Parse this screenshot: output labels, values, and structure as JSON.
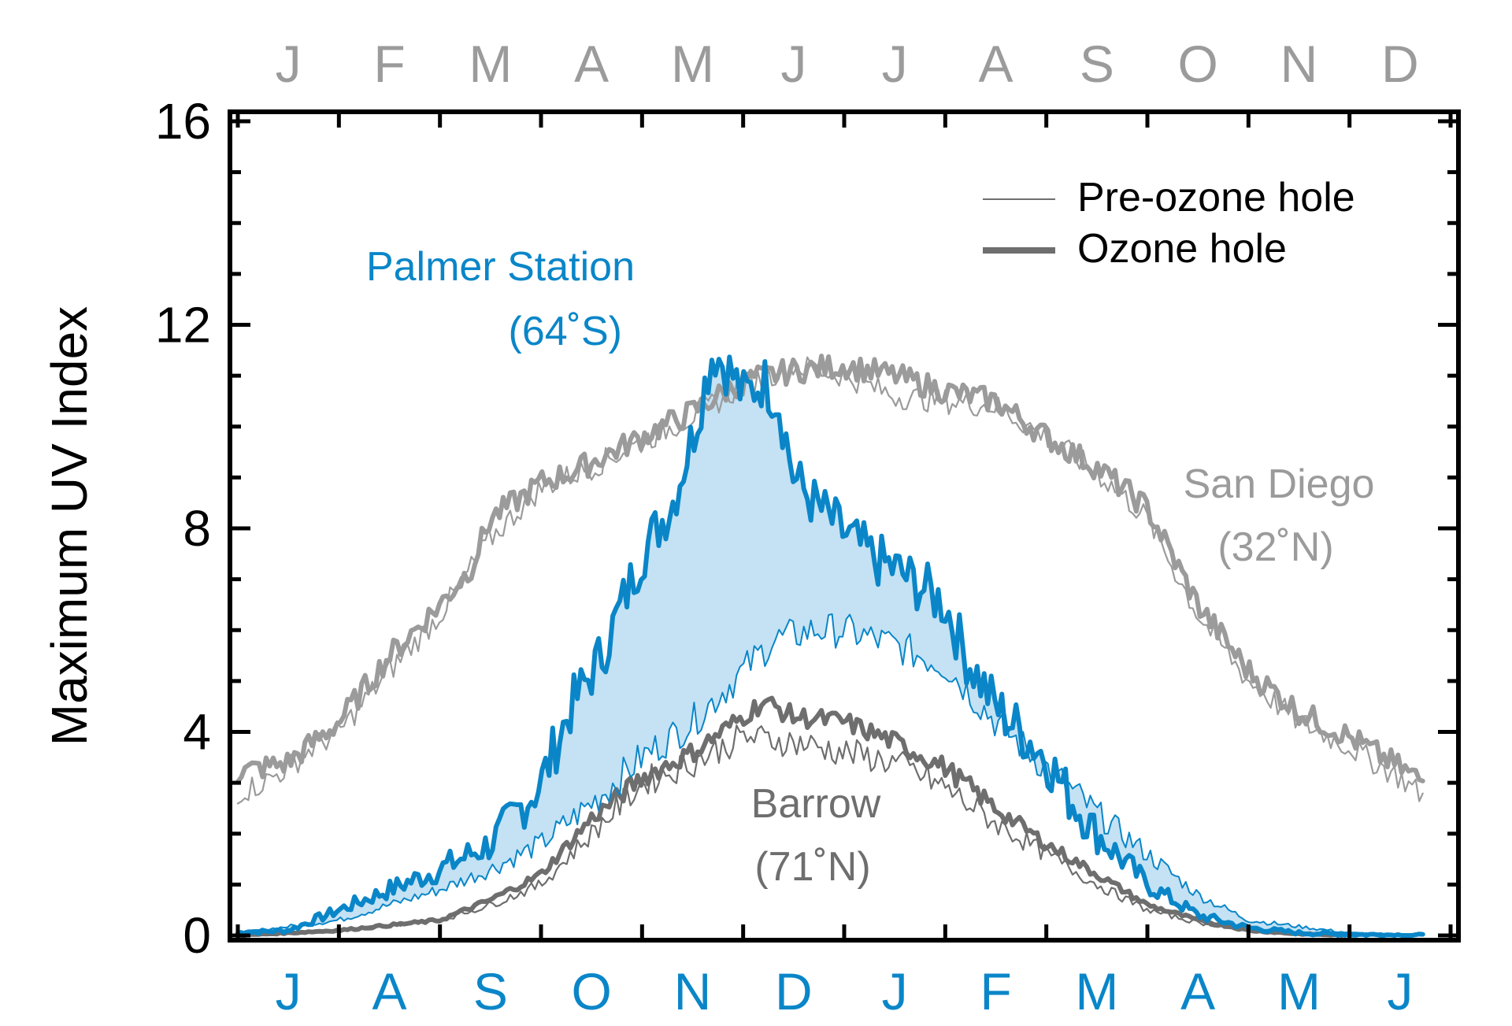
{
  "chart_data": {
    "type": "line",
    "ylabel": "Maximum UV Index",
    "ylim": [
      0,
      16
    ],
    "yticks": [
      "0",
      "4",
      "8",
      "12",
      "16"
    ],
    "top_axis_months": [
      "J",
      "F",
      "M",
      "A",
      "M",
      "J",
      "J",
      "A",
      "S",
      "O",
      "N",
      "D"
    ],
    "bottom_axis_months": [
      "J",
      "A",
      "S",
      "O",
      "N",
      "D",
      "J",
      "F",
      "M",
      "A",
      "M",
      "J"
    ],
    "legend": {
      "placement": "top-right",
      "pre_label": "Pre-ozone hole",
      "hole_label": "Ozone hole"
    },
    "station_labels": {
      "palmer": {
        "name": "Palmer Station",
        "lat": "(64˚S)"
      },
      "sandiego": {
        "name": "San Diego",
        "lat": "(32˚N)"
      },
      "barrow": {
        "name": "Barrow",
        "lat": "(71˚N)"
      }
    },
    "colors": {
      "palmer": "#0a86c8",
      "palmer_fill": "#c4e2f4",
      "sandiego": "#9b9b9b",
      "barrow": "#6e6e6e",
      "top_axis": "#9b9b9b",
      "bottom_axis": "#0a86c8"
    },
    "x_unit": "month (0 = start of first month, 12 = end of last month)",
    "xlim": [
      0,
      12
    ],
    "series": [
      {
        "name": "Palmer Station — Ozone hole",
        "x": [
          0.0,
          0.5,
          1.0,
          1.5,
          2.0,
          2.5,
          3.0,
          3.3,
          3.6,
          4.0,
          4.3,
          4.5,
          4.7,
          4.9,
          5.0,
          5.2,
          5.35,
          5.5,
          5.7,
          6.0,
          6.3,
          6.5,
          6.8,
          7.0,
          7.2,
          7.5,
          8.0,
          8.2,
          8.5,
          9.0,
          9.5,
          10.0,
          10.5,
          11.0,
          11.5,
          11.75
        ],
        "y": [
          0.05,
          0.1,
          0.5,
          0.9,
          1.3,
          1.8,
          3.0,
          4.5,
          5.5,
          7.5,
          8.5,
          9.8,
          11.5,
          11.0,
          10.6,
          10.9,
          10.5,
          9.0,
          8.5,
          7.9,
          7.4,
          7.2,
          6.8,
          6.5,
          5.5,
          4.5,
          3.5,
          2.8,
          2.0,
          1.0,
          0.4,
          0.15,
          0.05,
          0.02,
          0.01,
          0.0
        ]
      },
      {
        "name": "Palmer Station — Pre-ozone hole",
        "x": [
          0.0,
          1.0,
          2.0,
          2.5,
          3.0,
          3.5,
          4.0,
          4.5,
          5.0,
          5.3,
          5.7,
          6.0,
          6.5,
          7.0,
          7.5,
          8.0,
          8.5,
          9.0,
          9.5,
          10.0,
          11.0,
          11.75
        ],
        "y": [
          0.05,
          0.3,
          0.9,
          1.3,
          1.8,
          2.6,
          3.5,
          4.2,
          5.2,
          5.8,
          6.0,
          6.0,
          5.7,
          5.3,
          4.2,
          3.3,
          2.4,
          1.6,
          0.8,
          0.3,
          0.05,
          0.0
        ]
      },
      {
        "name": "San Diego — Ozone hole",
        "x": [
          0.0,
          0.25,
          0.5,
          0.75,
          1.0,
          1.5,
          2.0,
          2.3,
          2.5,
          2.8,
          3.0,
          3.3,
          3.5,
          4.0,
          4.5,
          5.0,
          5.5,
          6.0,
          6.5,
          7.0,
          7.5,
          8.0,
          8.5,
          9.0,
          9.5,
          10.0,
          10.5,
          11.0,
          11.5,
          11.75
        ],
        "y": [
          3.2,
          3.3,
          3.4,
          3.8,
          4.2,
          5.5,
          6.5,
          7.2,
          8.2,
          8.6,
          8.9,
          9.1,
          9.3,
          9.8,
          10.3,
          10.9,
          11.1,
          11.2,
          11.0,
          10.7,
          10.5,
          9.8,
          9.2,
          8.4,
          6.5,
          5.2,
          4.4,
          3.9,
          3.3,
          3.0
        ]
      },
      {
        "name": "San Diego — Pre-ozone hole",
        "x": [
          0.0,
          0.25,
          0.5,
          0.75,
          1.0,
          1.5,
          2.0,
          2.5,
          3.0,
          3.5,
          4.0,
          4.5,
          5.0,
          5.5,
          6.0,
          6.5,
          7.0,
          7.5,
          8.0,
          8.5,
          9.0,
          9.5,
          10.0,
          10.5,
          11.0,
          11.5,
          11.75
        ],
        "y": [
          2.8,
          3.0,
          3.3,
          3.7,
          4.0,
          5.2,
          6.3,
          7.8,
          8.8,
          9.2,
          9.7,
          10.2,
          10.8,
          11.2,
          11.0,
          10.6,
          10.5,
          10.4,
          9.8,
          9.1,
          8.2,
          6.3,
          5.0,
          4.2,
          3.7,
          3.1,
          2.7
        ]
      },
      {
        "name": "Barrow — Ozone hole",
        "x": [
          0.0,
          1.0,
          2.0,
          2.5,
          3.0,
          3.5,
          4.0,
          4.5,
          5.0,
          5.2,
          5.5,
          6.0,
          6.5,
          7.0,
          7.5,
          8.0,
          8.5,
          9.0,
          9.5,
          10.0,
          10.5,
          11.0
        ],
        "y": [
          0.0,
          0.1,
          0.3,
          0.7,
          1.2,
          2.3,
          3.1,
          3.6,
          4.3,
          4.6,
          4.3,
          4.2,
          3.8,
          3.3,
          2.5,
          1.8,
          1.2,
          0.6,
          0.3,
          0.1,
          0.03,
          0.0
        ]
      },
      {
        "name": "Barrow — Pre-ozone hole",
        "x": [
          0.0,
          1.0,
          2.0,
          2.5,
          3.0,
          3.5,
          4.0,
          4.5,
          5.0,
          5.5,
          6.0,
          6.5,
          7.0,
          7.5,
          8.0,
          8.5,
          9.0,
          9.5,
          10.0,
          10.5,
          11.0
        ],
        "y": [
          0.0,
          0.1,
          0.3,
          0.6,
          1.0,
          2.0,
          3.0,
          3.4,
          3.9,
          3.8,
          3.6,
          3.4,
          2.9,
          2.2,
          1.6,
          1.0,
          0.5,
          0.25,
          0.1,
          0.03,
          0.0
        ]
      }
    ]
  }
}
